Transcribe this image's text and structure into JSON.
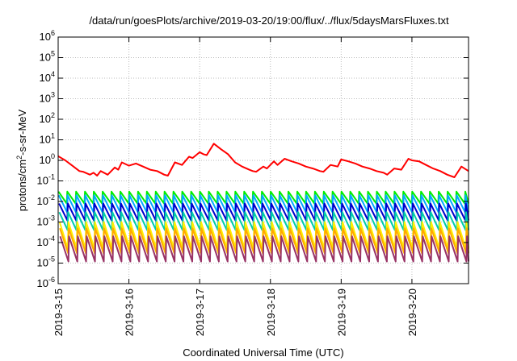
{
  "chart_data": {
    "type": "line",
    "title": "/data/run/goesPlots/archive/2019-03-20/19:00/flux/../flux/5daysMarsFluxes.txt",
    "xlabel": "Coordinated Universal Time (UTC)",
    "ylabel": "protons/cm2-s-sr-MeV",
    "ylabel_parts": [
      "protons/cm",
      "2",
      "-s-sr-MeV"
    ],
    "y_scale": "log",
    "ylim": [
      1e-06,
      1000000.0
    ],
    "xlim": [
      0,
      5.8
    ],
    "x_ticks": [
      {
        "x": 0,
        "label": "2019-3-15"
      },
      {
        "x": 1,
        "label": "2019-3-16"
      },
      {
        "x": 2,
        "label": "2019-3-17"
      },
      {
        "x": 3,
        "label": "2019-3-18"
      },
      {
        "x": 4,
        "label": "2019-3-19"
      },
      {
        "x": 5,
        "label": "2019-3-20"
      }
    ],
    "y_ticks": [
      {
        "exp": 6,
        "base": "10",
        "sup": "6"
      },
      {
        "exp": 5,
        "base": "10",
        "sup": "5"
      },
      {
        "exp": 4,
        "base": "10",
        "sup": "4"
      },
      {
        "exp": 3,
        "base": "10",
        "sup": "3"
      },
      {
        "exp": 2,
        "base": "10",
        "sup": "2"
      },
      {
        "exp": 1,
        "base": "10",
        "sup": "1"
      },
      {
        "exp": 0,
        "base": "10",
        "sup": "0"
      },
      {
        "exp": -1,
        "base": "10",
        "sup": "-1"
      },
      {
        "exp": -2,
        "base": "10",
        "sup": "-2"
      },
      {
        "exp": -3,
        "base": "10",
        "sup": "-3"
      },
      {
        "exp": -4,
        "base": "10",
        "sup": "-4"
      },
      {
        "exp": -5,
        "base": "10",
        "sup": "-5"
      },
      {
        "exp": -6,
        "base": "10",
        "sup": "-6"
      }
    ],
    "grid": true,
    "sawtooth_period_days": 0.125,
    "series": [
      {
        "color": "#ff0000",
        "style": "smooth",
        "x": [
          0,
          0.1,
          0.2,
          0.3,
          0.35,
          0.45,
          0.5,
          0.55,
          0.6,
          0.7,
          0.8,
          0.85,
          0.9,
          1.0,
          1.1,
          1.2,
          1.3,
          1.4,
          1.5,
          1.55,
          1.65,
          1.75,
          1.85,
          1.9,
          2.0,
          2.05,
          2.1,
          2.2,
          2.3,
          2.4,
          2.5,
          2.6,
          2.7,
          2.75,
          2.8,
          2.9,
          2.95,
          3.05,
          3.1,
          3.2,
          3.3,
          3.4,
          3.5,
          3.6,
          3.7,
          3.75,
          3.85,
          3.95,
          4.0,
          4.1,
          4.2,
          4.3,
          4.4,
          4.5,
          4.6,
          4.65,
          4.75,
          4.85,
          4.95,
          5.0,
          5.1,
          5.2,
          5.3,
          5.4,
          5.5,
          5.6,
          5.7,
          5.8
        ],
        "y": [
          1.6,
          1.0,
          0.55,
          0.3,
          0.28,
          0.2,
          0.25,
          0.18,
          0.3,
          0.2,
          0.45,
          0.35,
          0.8,
          0.55,
          0.7,
          0.5,
          0.35,
          0.3,
          0.2,
          0.18,
          0.8,
          0.6,
          1.5,
          1.3,
          2.5,
          2.0,
          1.8,
          6.5,
          3.5,
          2.0,
          0.8,
          0.5,
          0.35,
          0.3,
          0.28,
          0.5,
          0.4,
          0.9,
          0.6,
          1.2,
          0.9,
          0.7,
          0.5,
          0.4,
          0.3,
          0.28,
          0.6,
          0.5,
          1.1,
          0.9,
          0.7,
          0.5,
          0.4,
          0.3,
          0.25,
          0.2,
          0.4,
          0.35,
          1.2,
          1.0,
          0.9,
          0.6,
          0.4,
          0.3,
          0.2,
          0.15,
          0.5,
          0.3
        ]
      },
      {
        "color": "#00ee00",
        "style": "sawtooth",
        "peak": 0.03,
        "trough": 0.008
      },
      {
        "color": "#00aaff",
        "style": "sawtooth",
        "peak": 0.02,
        "trough": 0.003
      },
      {
        "color": "#0000cc",
        "style": "sawtooth",
        "peak": 0.008,
        "trough": 0.0012
      },
      {
        "color": "#00ccaa",
        "style": "sawtooth",
        "peak": 0.003,
        "trough": 0.0004
      },
      {
        "color": "#ffee00",
        "style": "sawtooth",
        "peak": 0.001,
        "trough": 5e-05
      },
      {
        "color": "#ffaa00",
        "style": "sawtooth",
        "peak": 0.0005,
        "trough": 3e-05
      },
      {
        "color": "#993366",
        "style": "sawtooth",
        "peak": 0.0002,
        "trough": 1.2e-05
      }
    ]
  }
}
